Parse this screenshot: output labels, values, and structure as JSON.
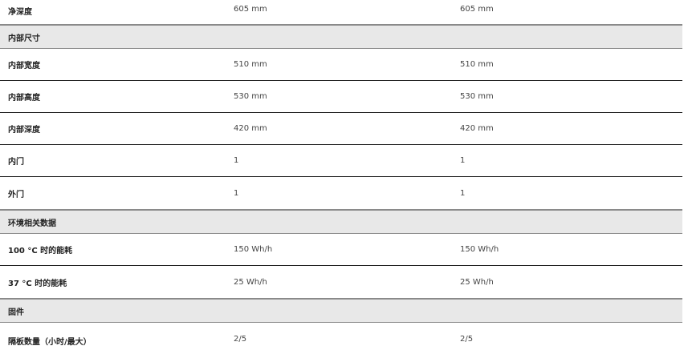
{
  "rows": [
    {
      "cells": [
        "净深度",
        "605 mm",
        "605 mm"
      ]
    },
    {
      "heading": "内部尺寸"
    },
    {
      "cells": [
        "内部宽度",
        "510 mm",
        "510 mm"
      ]
    },
    {
      "cells": [
        "内部高度",
        "530 mm",
        "530 mm"
      ]
    },
    {
      "cells": [
        "内部深度",
        "420 mm",
        "420 mm"
      ]
    },
    {
      "cells": [
        "内门",
        "1",
        "1"
      ]
    },
    {
      "cells": [
        "外门",
        "1",
        "1"
      ]
    },
    {
      "heading": "环境相关数据"
    },
    {
      "cells": [
        "100 °C 时的能耗",
        "150 Wh/h",
        "150 Wh/h"
      ]
    },
    {
      "cells": [
        "37 °C 时的能耗",
        "25 Wh/h",
        "25 Wh/h"
      ]
    },
    {
      "heading": "固件"
    },
    {
      "cells": [
        "隔板数量（小时/最大）",
        "2/5",
        "2/5"
      ]
    }
  ]
}
